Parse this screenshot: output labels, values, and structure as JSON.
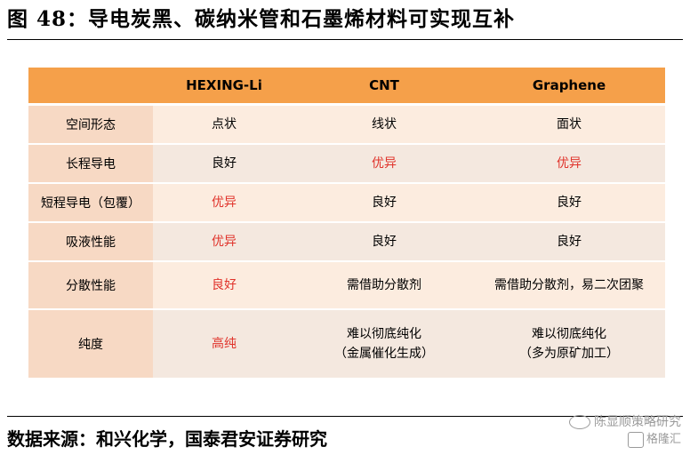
{
  "title": "图 48：导电炭黑、碳纳米管和石墨烯材料可实现互补",
  "table": {
    "headers": [
      "",
      "HEXING-Li",
      "CNT",
      "Graphene"
    ],
    "rows": [
      {
        "label": "空间形态",
        "cells": [
          [
            "点状"
          ],
          [
            "线状"
          ],
          [
            "面状"
          ]
        ],
        "highlight": [
          false,
          false,
          false
        ]
      },
      {
        "label": "长程导电",
        "cells": [
          [
            "良好"
          ],
          [
            "优异"
          ],
          [
            "优异"
          ]
        ],
        "highlight": [
          false,
          true,
          true
        ]
      },
      {
        "label": "短程导电（包覆）",
        "cells": [
          [
            "优异"
          ],
          [
            "良好"
          ],
          [
            "良好"
          ]
        ],
        "highlight": [
          true,
          false,
          false
        ]
      },
      {
        "label": "吸液性能",
        "cells": [
          [
            "优异"
          ],
          [
            "良好"
          ],
          [
            "良好"
          ]
        ],
        "highlight": [
          true,
          false,
          false
        ]
      },
      {
        "label": "分散性能",
        "cells": [
          [
            "良好"
          ],
          [
            "需借助分散剂"
          ],
          [
            "需借助分散剂，易二次团聚"
          ]
        ],
        "highlight": [
          true,
          false,
          false
        ]
      },
      {
        "label": "纯度",
        "cells": [
          [
            "高纯"
          ],
          [
            "难以彻底纯化",
            "（金属催化生成）"
          ],
          [
            "难以彻底纯化",
            "（多为原矿加工）"
          ]
        ],
        "highlight": [
          true,
          false,
          false
        ]
      }
    ]
  },
  "source": "数据来源：和兴化学，国泰君安证券研究",
  "watermark": {
    "line1": "陈显顺策略研究",
    "line2": "格隆汇"
  },
  "colors": {
    "header_bg": "#f5a04a",
    "row_bg": "#fcecdf",
    "highlight_text": "#e0322a"
  }
}
